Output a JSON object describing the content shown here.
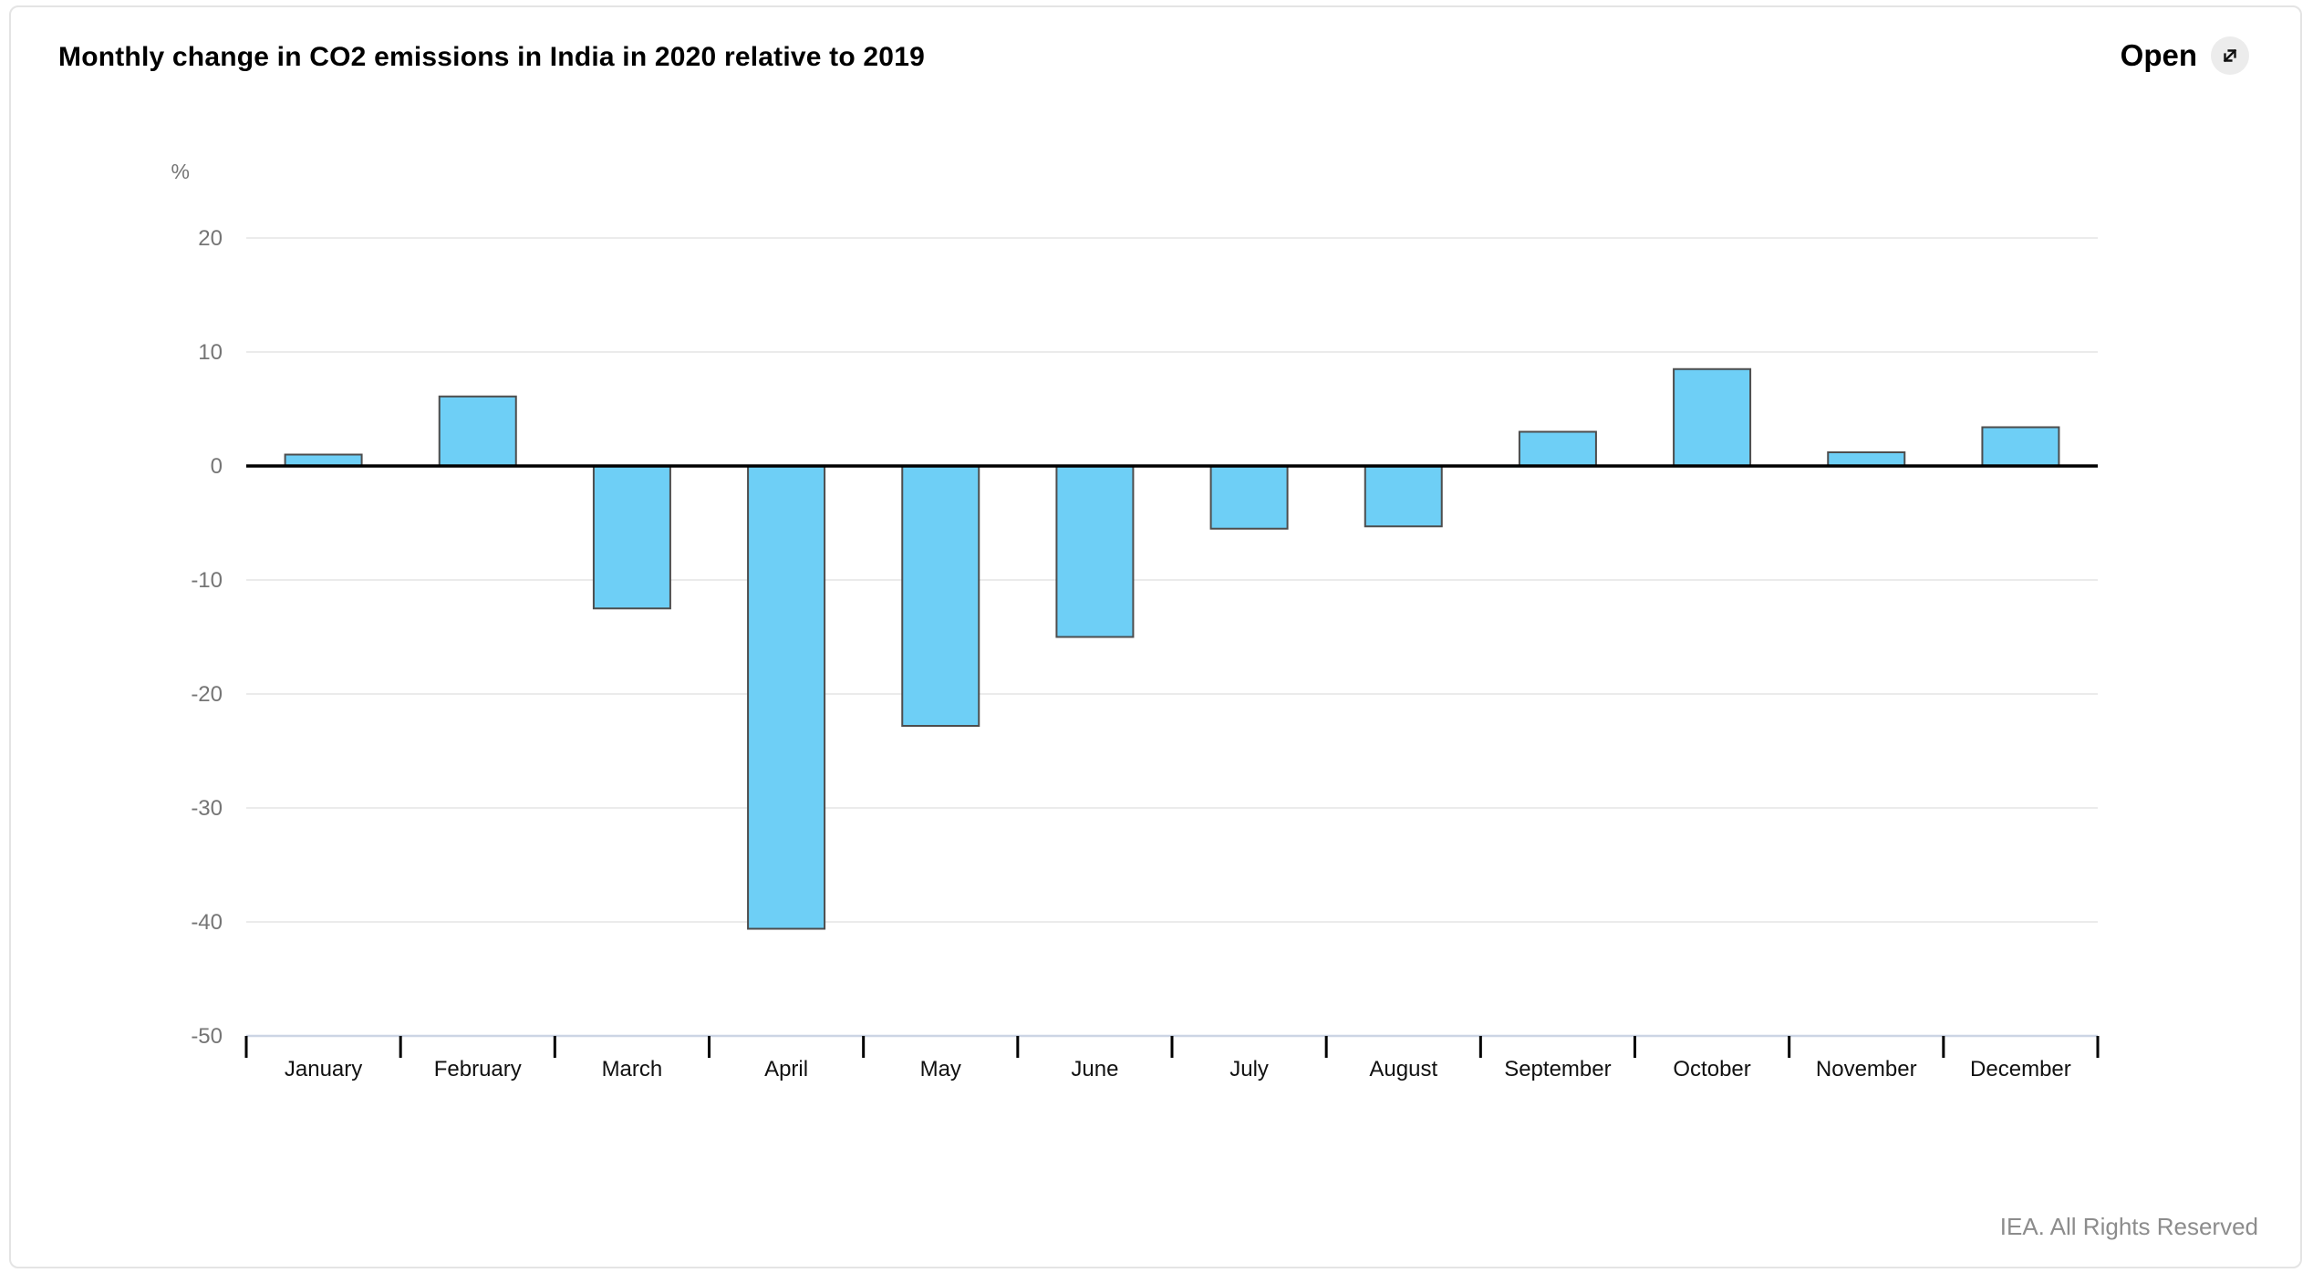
{
  "header": {
    "title": "Monthly change in CO2 emissions in India in 2020 relative to 2019",
    "open_label": "Open",
    "open_icon": "open-expand-arrow-icon"
  },
  "footer": {
    "credit": "IEA. All Rights Reserved"
  },
  "chart_data": {
    "type": "bar",
    "title": "Monthly change in CO2 emissions in India in 2020 relative to 2019",
    "unit_label": "%",
    "xlabel": "",
    "ylabel": "%",
    "categories": [
      "January",
      "February",
      "March",
      "April",
      "May",
      "June",
      "July",
      "August",
      "September",
      "October",
      "November",
      "December"
    ],
    "values": [
      1,
      6.1,
      -12.5,
      -40.6,
      -22.8,
      -15,
      -5.5,
      -5.3,
      3,
      8.5,
      1.2,
      3.4
    ],
    "ylim": [
      -50,
      25
    ],
    "yticks": [
      20,
      10,
      0,
      -10,
      -20,
      -30,
      -40,
      -50
    ],
    "grid": true,
    "legend": "none",
    "bar_color": "#6ECFF6",
    "bar_border_color": "#4d4d4d",
    "zero_line_color": "#000000",
    "gridline_color": "#ebebeb",
    "baseline_color": "#ccd5e4",
    "axis_label_color": "#757575",
    "category_label_color": "#111111"
  }
}
